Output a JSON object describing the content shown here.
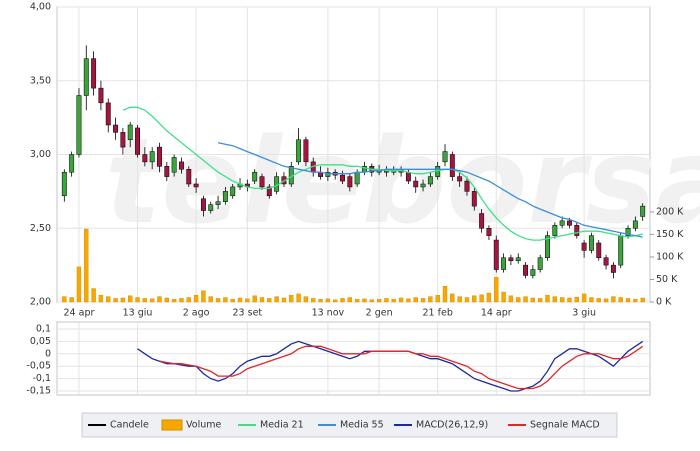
{
  "watermark": "teleborsa",
  "chart_data": [
    {
      "type": "candlestick",
      "xlim": [
        -1,
        80
      ],
      "xticks": [
        {
          "value": 2,
          "label": "24 apr"
        },
        {
          "value": 10,
          "label": "13 giu"
        },
        {
          "value": 18,
          "label": "2 ago"
        },
        {
          "value": 25,
          "label": "23 set"
        },
        {
          "value": 36,
          "label": "13 nov"
        },
        {
          "value": 43,
          "label": "2 gen"
        },
        {
          "value": 51,
          "label": "21 feb"
        },
        {
          "value": 59,
          "label": "14 apr"
        },
        {
          "value": 71,
          "label": "3 giu"
        }
      ],
      "ylim": [
        2,
        4
      ],
      "yticks": [
        {
          "value": 2,
          "label": "2,00"
        },
        {
          "value": 2.5,
          "label": "2,50"
        },
        {
          "value": 3,
          "label": "3,00"
        },
        {
          "value": 3.5,
          "label": "3,50"
        },
        {
          "value": 4,
          "label": "4,00"
        }
      ],
      "y2lim": [
        0,
        655000
      ],
      "y2ticks": [
        {
          "value": 0,
          "label": "0 K"
        },
        {
          "value": 50000,
          "label": "50 K"
        },
        {
          "value": 100000,
          "label": "100 K"
        },
        {
          "value": 150000,
          "label": "150 K"
        },
        {
          "value": 200000,
          "label": "200 K"
        }
      ],
      "grid": true,
      "series": [
        {
          "name": "Candele",
          "type": "candlestick",
          "color": "#000000",
          "up_color": "#3aa53a",
          "down_color": "#a3173f",
          "open": [
            2.72,
            2.88,
            3.0,
            3.4,
            3.65,
            3.45,
            3.35,
            3.2,
            3.15,
            3.1,
            3.18,
            3.0,
            2.95,
            3.05,
            2.92,
            2.88,
            2.95,
            2.9,
            2.8,
            2.7,
            2.62,
            2.66,
            2.68,
            2.72,
            2.78,
            2.8,
            2.82,
            2.85,
            2.78,
            2.75,
            2.85,
            2.8,
            2.95,
            3.1,
            2.95,
            2.88,
            2.85,
            2.88,
            2.86,
            2.85,
            2.8,
            2.88,
            2.92,
            2.88,
            2.9,
            2.88,
            2.9,
            2.88,
            2.82,
            2.78,
            2.8,
            2.85,
            2.95,
            3.0,
            2.85,
            2.82,
            2.75,
            2.6,
            2.5,
            2.42,
            2.22,
            2.3,
            2.28,
            2.25,
            2.18,
            2.22,
            2.3,
            2.45,
            2.52,
            2.55,
            2.52,
            2.4,
            2.35,
            2.4,
            2.3,
            2.25,
            2.25,
            2.45,
            2.5,
            2.58
          ],
          "high": [
            2.9,
            3.02,
            3.45,
            3.74,
            3.7,
            3.5,
            3.38,
            3.25,
            3.18,
            3.22,
            3.2,
            3.05,
            3.05,
            3.08,
            2.95,
            3.0,
            2.98,
            2.92,
            2.84,
            2.72,
            2.68,
            2.72,
            2.78,
            2.8,
            2.84,
            2.83,
            2.9,
            2.87,
            2.8,
            2.88,
            2.88,
            2.95,
            3.18,
            3.12,
            2.98,
            2.92,
            2.91,
            2.9,
            2.89,
            2.87,
            2.9,
            2.95,
            2.94,
            2.93,
            2.92,
            2.92,
            2.92,
            2.9,
            2.85,
            2.83,
            2.88,
            2.95,
            3.07,
            3.02,
            2.88,
            2.85,
            2.78,
            2.63,
            2.52,
            2.45,
            2.33,
            2.32,
            2.33,
            2.27,
            2.25,
            2.32,
            2.48,
            2.54,
            2.58,
            2.57,
            2.54,
            2.42,
            2.47,
            2.42,
            2.32,
            2.27,
            2.47,
            2.52,
            2.58,
            2.67
          ],
          "low": [
            2.68,
            2.85,
            2.98,
            3.3,
            3.4,
            3.3,
            3.15,
            3.1,
            3.0,
            3.05,
            2.98,
            2.92,
            2.9,
            2.88,
            2.82,
            2.85,
            2.87,
            2.78,
            2.74,
            2.58,
            2.6,
            2.63,
            2.66,
            2.7,
            2.76,
            2.75,
            2.8,
            2.76,
            2.7,
            2.73,
            2.78,
            2.78,
            2.93,
            2.92,
            2.85,
            2.83,
            2.82,
            2.83,
            2.8,
            2.75,
            2.78,
            2.86,
            2.85,
            2.86,
            2.85,
            2.86,
            2.85,
            2.8,
            2.74,
            2.75,
            2.78,
            2.83,
            2.92,
            2.82,
            2.78,
            2.72,
            2.62,
            2.47,
            2.42,
            2.2,
            2.2,
            2.25,
            2.26,
            2.16,
            2.16,
            2.2,
            2.28,
            2.43,
            2.5,
            2.5,
            2.43,
            2.3,
            2.33,
            2.28,
            2.22,
            2.16,
            2.23,
            2.43,
            2.48,
            2.55
          ],
          "close": [
            2.88,
            3.0,
            3.4,
            3.65,
            3.45,
            3.35,
            3.2,
            3.15,
            3.05,
            3.2,
            3.0,
            2.95,
            3.02,
            2.92,
            2.85,
            2.98,
            2.9,
            2.8,
            2.78,
            2.62,
            2.66,
            2.68,
            2.75,
            2.78,
            2.8,
            2.78,
            2.88,
            2.78,
            2.72,
            2.85,
            2.8,
            2.92,
            3.1,
            2.95,
            2.88,
            2.85,
            2.88,
            2.86,
            2.82,
            2.78,
            2.88,
            2.92,
            2.88,
            2.9,
            2.88,
            2.9,
            2.88,
            2.82,
            2.78,
            2.8,
            2.85,
            2.92,
            3.02,
            2.85,
            2.82,
            2.75,
            2.65,
            2.5,
            2.45,
            2.22,
            2.3,
            2.28,
            2.3,
            2.18,
            2.22,
            2.3,
            2.45,
            2.52,
            2.55,
            2.52,
            2.45,
            2.35,
            2.45,
            2.3,
            2.25,
            2.2,
            2.45,
            2.5,
            2.55,
            2.65
          ]
        },
        {
          "name": "Volume",
          "type": "bar",
          "axis": "y2",
          "color": "#f7a800",
          "values": [
            12000,
            10000,
            78000,
            162000,
            30000,
            15000,
            12000,
            8000,
            9000,
            14000,
            10000,
            8000,
            7000,
            12000,
            9000,
            6000,
            8000,
            10000,
            15000,
            25000,
            12000,
            8000,
            10000,
            6000,
            9000,
            7000,
            14000,
            10000,
            8000,
            12000,
            9000,
            15000,
            18000,
            12000,
            8000,
            6000,
            7000,
            5000,
            8000,
            10000,
            6000,
            7000,
            5000,
            6000,
            8000,
            6000,
            9000,
            7000,
            10000,
            8000,
            12000,
            15000,
            35000,
            18000,
            12000,
            10000,
            14000,
            16000,
            20000,
            55000,
            22000,
            14000,
            10000,
            12000,
            9000,
            8000,
            15000,
            12000,
            10000,
            9000,
            11000,
            18000,
            10000,
            8000,
            7000,
            12000,
            10000,
            8000,
            6000,
            9000
          ]
        },
        {
          "name": "Media 21",
          "type": "line",
          "color": "#3ee08a",
          "values": [
            null,
            null,
            null,
            null,
            null,
            null,
            null,
            null,
            3.3,
            3.32,
            3.32,
            3.3,
            3.26,
            3.21,
            3.16,
            3.12,
            3.08,
            3.04,
            3.0,
            2.96,
            2.92,
            2.88,
            2.85,
            2.82,
            2.8,
            2.78,
            2.77,
            2.77,
            2.77,
            2.79,
            2.82,
            2.85,
            2.88,
            2.9,
            2.92,
            2.93,
            2.93,
            2.93,
            2.93,
            2.92,
            2.92,
            2.91,
            2.9,
            2.9,
            2.89,
            2.89,
            2.89,
            2.88,
            2.87,
            2.87,
            2.88,
            2.89,
            2.9,
            2.9,
            2.88,
            2.84,
            2.78,
            2.7,
            2.63,
            2.57,
            2.52,
            2.48,
            2.45,
            2.43,
            2.42,
            2.42,
            2.43,
            2.44,
            2.45,
            2.46,
            2.47,
            2.48,
            2.48,
            2.48,
            2.47,
            2.46,
            2.45,
            2.44,
            2.45,
            2.46
          ]
        },
        {
          "name": "Media 55",
          "type": "line",
          "color": "#3b8fd9",
          "values": [
            null,
            null,
            null,
            null,
            null,
            null,
            null,
            null,
            null,
            null,
            null,
            null,
            null,
            null,
            null,
            null,
            null,
            null,
            null,
            null,
            null,
            3.08,
            3.07,
            3.06,
            3.04,
            3.02,
            3.0,
            2.98,
            2.96,
            2.94,
            2.92,
            2.91,
            2.9,
            2.89,
            2.88,
            2.88,
            2.87,
            2.87,
            2.87,
            2.87,
            2.88,
            2.88,
            2.89,
            2.89,
            2.9,
            2.9,
            2.9,
            2.9,
            2.9,
            2.9,
            2.9,
            2.9,
            2.9,
            2.9,
            2.89,
            2.88,
            2.86,
            2.84,
            2.82,
            2.79,
            2.76,
            2.73,
            2.7,
            2.68,
            2.65,
            2.63,
            2.61,
            2.59,
            2.57,
            2.56,
            2.54,
            2.52,
            2.51,
            2.5,
            2.49,
            2.48,
            2.47,
            2.46,
            2.45,
            2.44
          ]
        }
      ]
    },
    {
      "type": "line",
      "ylim": [
        -0.166,
        0.128
      ],
      "yticks": [
        {
          "value": 0.1,
          "label": "0,1"
        },
        {
          "value": 0.05,
          "label": "0,05"
        },
        0,
        {
          "value": -0.05,
          "label": "-0,05"
        },
        {
          "value": -0.1,
          "label": "-0,1"
        },
        {
          "value": -0.15,
          "label": "-0,15"
        }
      ],
      "grid": true,
      "series": [
        {
          "name": "MACD(26,12,9)",
          "color": "#1d2a9e",
          "values": [
            null,
            null,
            null,
            null,
            null,
            null,
            null,
            null,
            null,
            null,
            0.02,
            0.0,
            -0.02,
            -0.03,
            -0.04,
            -0.04,
            -0.045,
            -0.05,
            -0.05,
            -0.08,
            -0.1,
            -0.11,
            -0.1,
            -0.08,
            -0.05,
            -0.03,
            -0.02,
            -0.01,
            -0.01,
            0.0,
            0.02,
            0.04,
            0.05,
            0.04,
            0.03,
            0.02,
            0.01,
            0.0,
            -0.01,
            -0.02,
            -0.01,
            0.01,
            0.01,
            0.01,
            0.01,
            0.01,
            0.01,
            0.01,
            0.0,
            -0.01,
            -0.02,
            -0.02,
            -0.03,
            -0.04,
            -0.06,
            -0.08,
            -0.1,
            -0.11,
            -0.12,
            -0.13,
            -0.14,
            -0.15,
            -0.15,
            -0.14,
            -0.13,
            -0.11,
            -0.07,
            -0.02,
            0.0,
            0.02,
            0.02,
            0.01,
            0.0,
            -0.01,
            -0.03,
            -0.05,
            -0.02,
            0.01,
            0.03,
            0.05
          ]
        },
        {
          "name": "Segnale MACD",
          "color": "#e0262b",
          "values": [
            null,
            null,
            null,
            null,
            null,
            null,
            null,
            null,
            null,
            null,
            null,
            null,
            null,
            -0.03,
            -0.035,
            -0.04,
            -0.04,
            -0.045,
            -0.05,
            -0.06,
            -0.07,
            -0.09,
            -0.09,
            -0.09,
            -0.08,
            -0.06,
            -0.05,
            -0.04,
            -0.03,
            -0.02,
            -0.01,
            0.0,
            0.02,
            0.03,
            0.03,
            0.03,
            0.02,
            0.01,
            0.0,
            0.0,
            0.0,
            0.0,
            0.01,
            0.01,
            0.01,
            0.01,
            0.01,
            0.01,
            0.0,
            0.0,
            -0.01,
            -0.01,
            -0.02,
            -0.03,
            -0.04,
            -0.05,
            -0.07,
            -0.08,
            -0.1,
            -0.11,
            -0.12,
            -0.13,
            -0.14,
            -0.14,
            -0.14,
            -0.13,
            -0.11,
            -0.08,
            -0.05,
            -0.03,
            -0.01,
            0.0,
            0.0,
            0.0,
            -0.01,
            -0.02,
            -0.02,
            -0.01,
            0.01,
            0.03
          ]
        }
      ]
    }
  ]
}
